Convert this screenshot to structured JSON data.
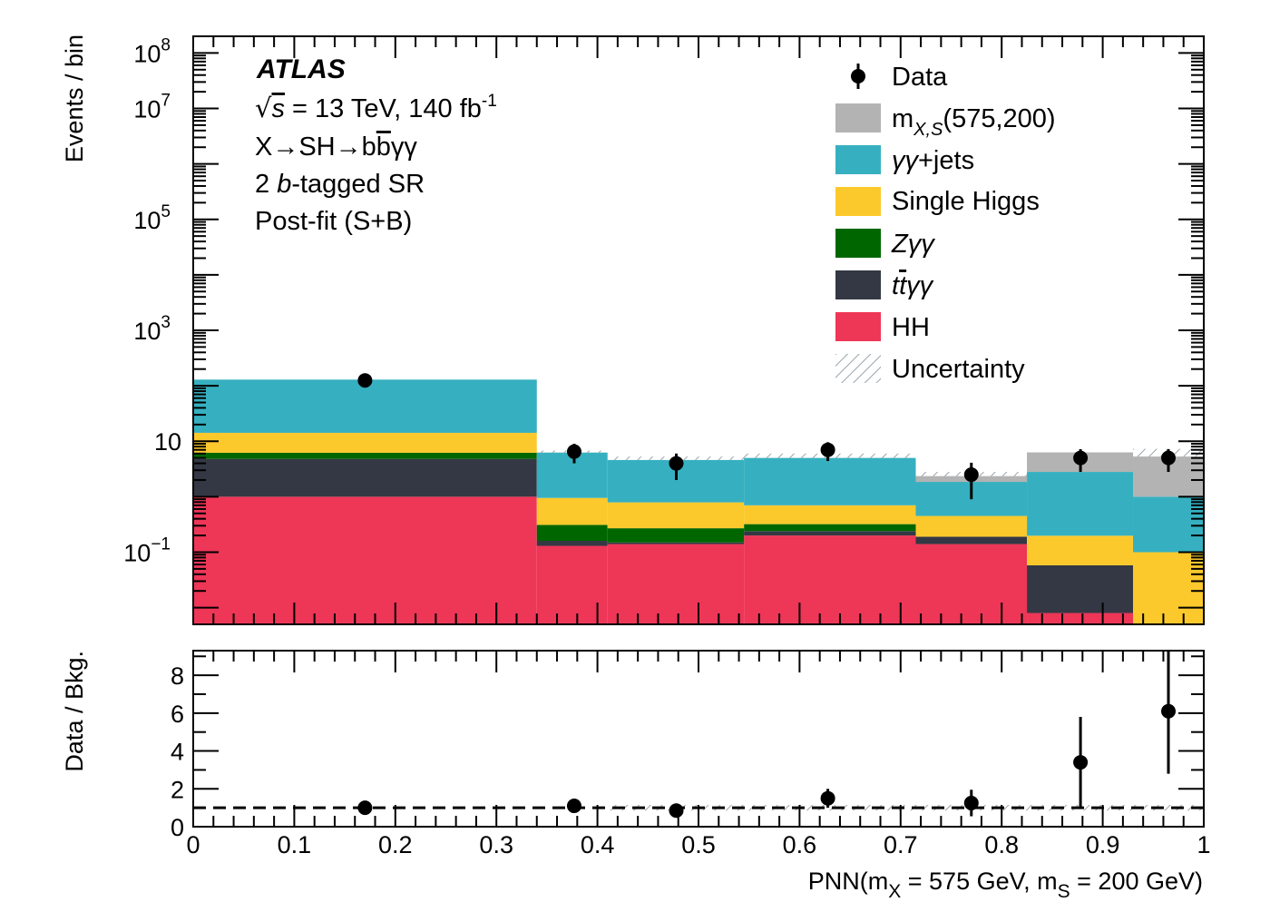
{
  "chart_data": [
    {
      "type": "bar",
      "subtype": "stacked-histogram",
      "ylabel": "Events / bin",
      "yscale": "log",
      "ylim": [
        0.005,
        200000000
      ],
      "xlim": [
        0,
        1
      ],
      "ytick_labels": [
        "10^8",
        "10^7",
        "10^5",
        "10^3",
        "10",
        "10^−1"
      ],
      "bin_edges": [
        0,
        0.34,
        0.41,
        0.545,
        0.715,
        0.825,
        0.93,
        1.0
      ],
      "series": [
        {
          "name": "HH",
          "color": "#ee3657",
          "values": [
            1.0,
            0.13,
            0.14,
            0.2,
            0.14,
            0.008,
            0.0
          ]
        },
        {
          "name": "tt̄γγ",
          "color": "#343844",
          "values": [
            3.8,
            0.03,
            0.01,
            0.04,
            0.05,
            0.05,
            0.0
          ]
        },
        {
          "name": "Zγγ",
          "color": "#006600",
          "values": [
            1.4,
            0.15,
            0.12,
            0.08,
            0.0,
            0.0,
            0.0
          ]
        },
        {
          "name": "Single Higgs",
          "color": "#fcc92c",
          "values": [
            8.0,
            0.64,
            0.52,
            0.38,
            0.26,
            0.14,
            0.1
          ]
        },
        {
          "name": "γγ+jets",
          "color": "#36b0c0",
          "values": [
            115,
            5.3,
            3.8,
            4.3,
            1.4,
            2.6,
            0.9
          ]
        },
        {
          "name": "m_{X,S}(575,200)",
          "color": "#b3b3b3",
          "values": [
            0.0,
            0.0,
            0.0,
            0.0,
            0.5,
            3.5,
            4.3
          ]
        }
      ],
      "data_points": [
        {
          "x": 0.17,
          "y": 125,
          "yerr": 11
        },
        {
          "x": 0.377,
          "y": 6.5,
          "yerr": 2.5
        },
        {
          "x": 0.478,
          "y": 4.0,
          "yerr": 2.0
        },
        {
          "x": 0.628,
          "y": 7.0,
          "yerr": 2.6
        },
        {
          "x": 0.77,
          "y": 2.5,
          "yerr": 1.6
        },
        {
          "x": 0.878,
          "y": 5.0,
          "yerr": 2.2
        },
        {
          "x": 0.965,
          "y": 5.0,
          "yerr": 2.2
        }
      ],
      "uncertainty_top": [
        125,
        6.8,
        5.3,
        6.0,
        2.8,
        2.8,
        7.3
      ],
      "legend_position": "top-right",
      "legend": [
        {
          "label": "Data",
          "kind": "marker"
        },
        {
          "label": "m_{X,S}(575,200)",
          "color": "#b3b3b3",
          "kind": "box"
        },
        {
          "label": "γγ+jets",
          "color": "#36b0c0",
          "kind": "box"
        },
        {
          "label": "Single Higgs",
          "color": "#fcc92c",
          "kind": "box"
        },
        {
          "label": "Zγγ",
          "color": "#006600",
          "kind": "box"
        },
        {
          "label": "tt̄γγ",
          "color": "#343844",
          "kind": "box"
        },
        {
          "label": "HH",
          "color": "#ee3657",
          "kind": "box"
        },
        {
          "label": "Uncertainty",
          "kind": "hatch"
        }
      ],
      "annotations": {
        "experiment": "ATLAS",
        "energy": "√s = 13 TeV, 140 fb⁻¹",
        "process": "X→SH→bb̄γγ",
        "region": "2 b-tagged SR",
        "fit": "Post-fit (S+B)"
      }
    },
    {
      "type": "scatter",
      "subtype": "ratio",
      "ylabel": "Data / Bkg.",
      "xlabel": "PNN(m_X = 575 GeV, m_S = 200 GeV)",
      "xlim": [
        0,
        1
      ],
      "ylim": [
        0,
        9.3
      ],
      "ytick_labels": [
        "0",
        "2",
        "4",
        "6",
        "8"
      ],
      "xtick_labels": [
        "0",
        "0.1",
        "0.2",
        "0.3",
        "0.4",
        "0.5",
        "0.6",
        "0.7",
        "0.8",
        "0.9",
        "1"
      ],
      "reference_line": 1,
      "points": [
        {
          "x": 0.17,
          "y": 1.0,
          "yerr": 0.12
        },
        {
          "x": 0.377,
          "y": 1.1,
          "yerr": 0.25
        },
        {
          "x": 0.478,
          "y": 0.85,
          "yerr": 0.3
        },
        {
          "x": 0.628,
          "y": 1.5,
          "yerr": 0.5
        },
        {
          "x": 0.77,
          "y": 1.25,
          "yerr": 0.7
        },
        {
          "x": 0.878,
          "y": 3.4,
          "yerr": 2.4
        },
        {
          "x": 0.965,
          "y": 6.1,
          "yerr": 3.3
        }
      ],
      "uncertainty_band_from_x": 0.41
    }
  ]
}
